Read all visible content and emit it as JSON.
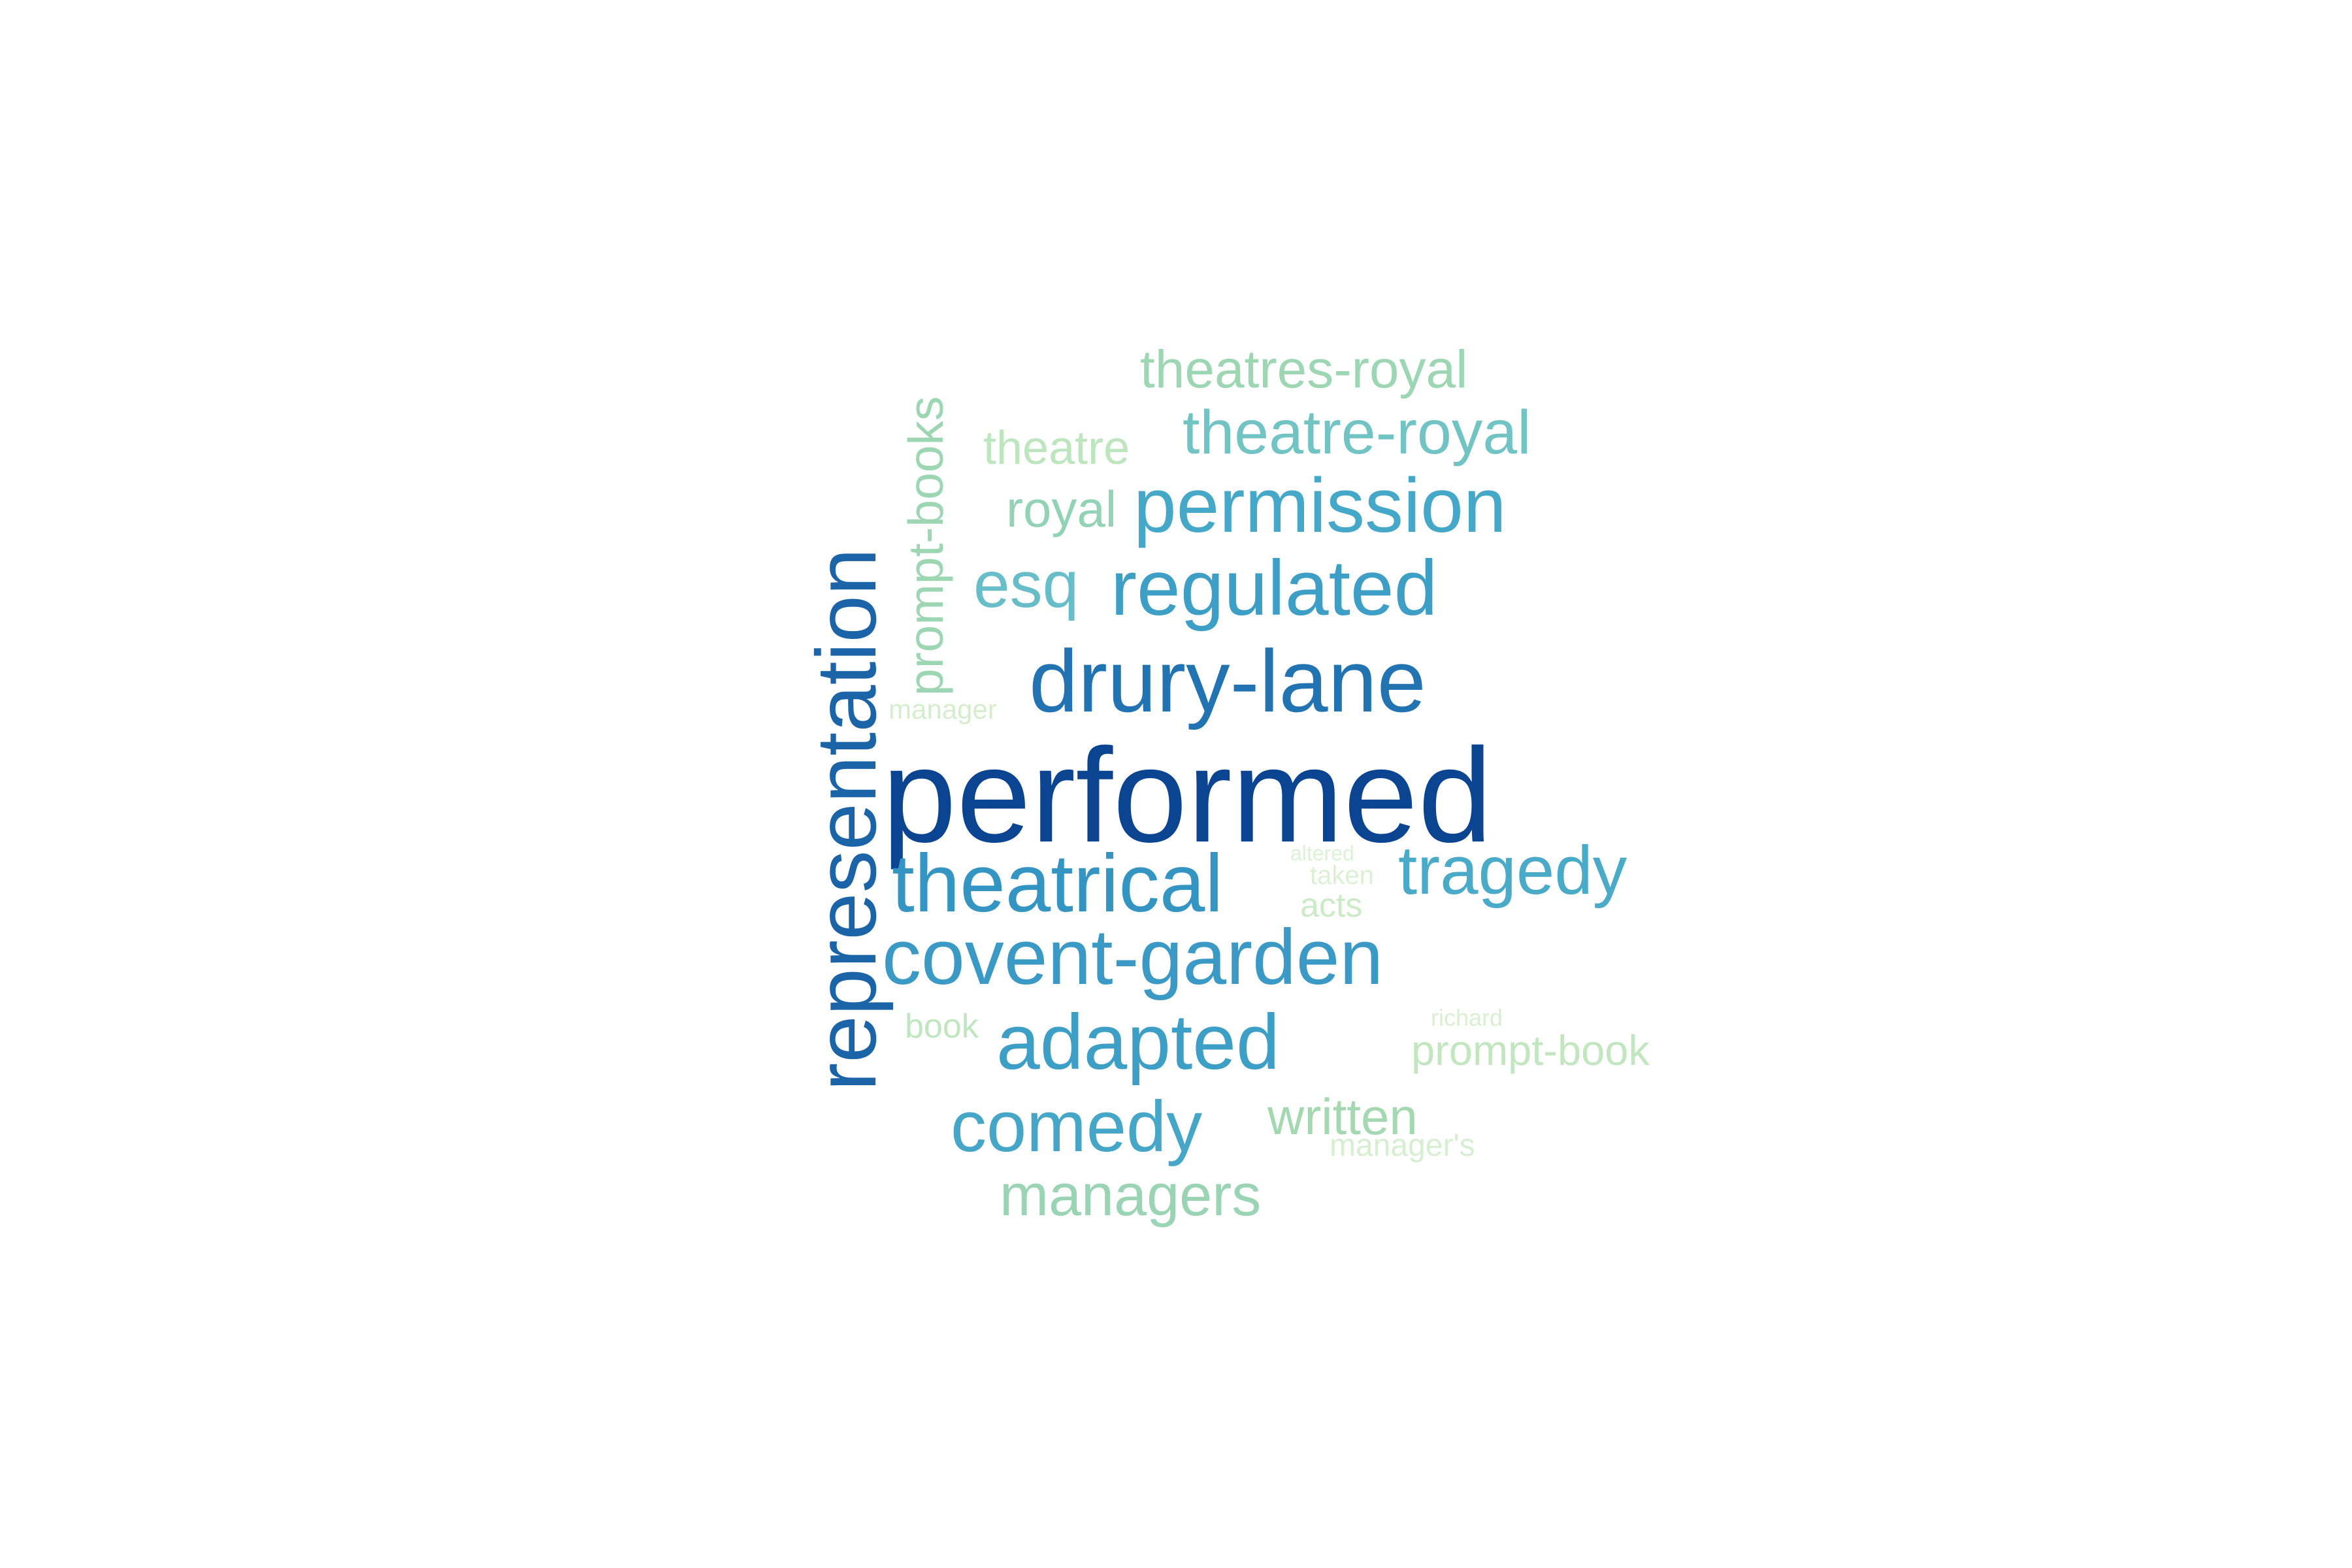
{
  "words": [
    {
      "text": "performed",
      "color": "#0b4490",
      "weight": 1.0
    },
    {
      "text": "representation",
      "color": "#1b64a8",
      "weight": 0.86
    },
    {
      "text": "drury-lane",
      "color": "#2173b2",
      "weight": 0.72
    },
    {
      "text": "theatrical",
      "color": "#3495c3",
      "weight": 0.66
    },
    {
      "text": "covent-garden",
      "color": "#3a9ac5",
      "weight": 0.63
    },
    {
      "text": "regulated",
      "color": "#3d9ec6",
      "weight": 0.62
    },
    {
      "text": "adapted",
      "color": "#3e9fc6",
      "weight": 0.6
    },
    {
      "text": "permission",
      "color": "#46a8c9",
      "weight": 0.58
    },
    {
      "text": "tragedy",
      "color": "#4aabc9",
      "weight": 0.56
    },
    {
      "text": "comedy",
      "color": "#45a6c8",
      "weight": 0.56
    },
    {
      "text": "esq",
      "color": "#68bec8",
      "weight": 0.5
    },
    {
      "text": "theatre-royal",
      "color": "#72c4c4",
      "weight": 0.48
    },
    {
      "text": "managers",
      "color": "#9ad4b4",
      "weight": 0.42
    },
    {
      "text": "prompt-books",
      "color": "#9cd6b3",
      "weight": 0.4
    },
    {
      "text": "theatres-royal",
      "color": "#9dd6b2",
      "weight": 0.4
    },
    {
      "text": "royal",
      "color": "#92d2b7",
      "weight": 0.38
    },
    {
      "text": "theatre",
      "color": "#bde5be",
      "weight": 0.38
    },
    {
      "text": "written",
      "color": "#a3d8b0",
      "weight": 0.36
    },
    {
      "text": "prompt-book",
      "color": "#c2e7c0",
      "weight": 0.34
    },
    {
      "text": "book",
      "color": "#bfe6bf",
      "weight": 0.28
    },
    {
      "text": "manager's",
      "color": "#d6efd0",
      "weight": 0.26
    },
    {
      "text": "acts",
      "color": "#cbebc6",
      "weight": 0.26
    },
    {
      "text": "taken",
      "color": "#daf1d3",
      "weight": 0.24
    },
    {
      "text": "manager",
      "color": "#d4eecd",
      "weight": 0.24
    },
    {
      "text": "richard",
      "color": "#d8f0d0",
      "weight": 0.2
    },
    {
      "text": "altered",
      "color": "#dcf2d5",
      "weight": 0.18
    }
  ]
}
